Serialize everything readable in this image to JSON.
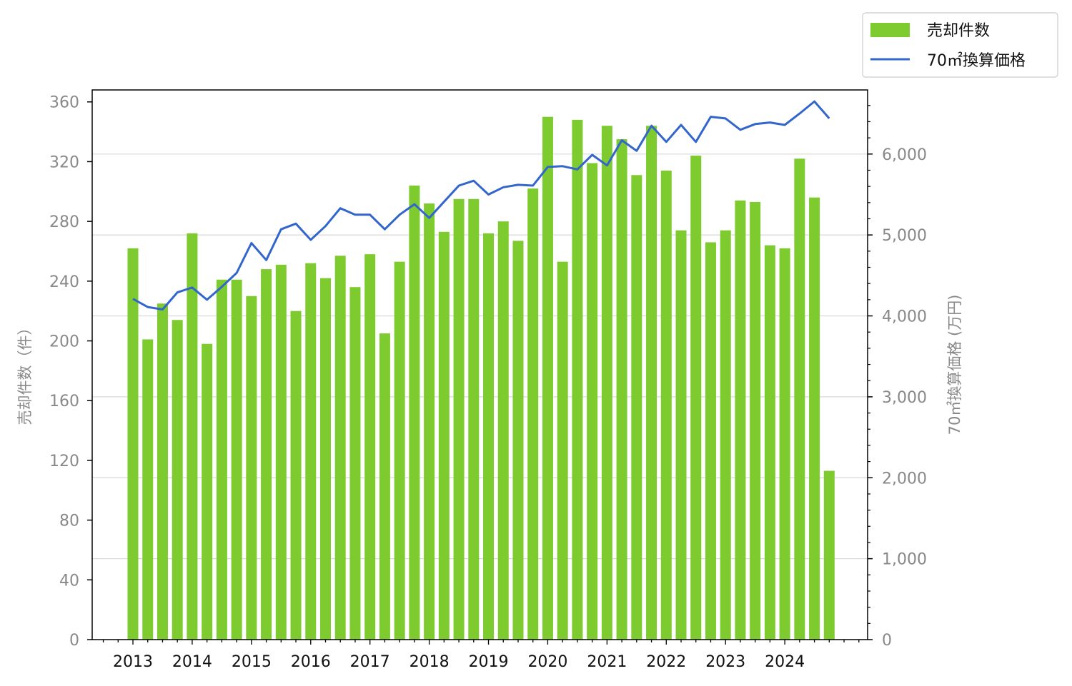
{
  "chart_data": {
    "type": "bar",
    "title": "",
    "xlabel": "",
    "ylabel": "売却件数（件）",
    "y2label": "70㎡換算価格 (万円)",
    "ylim": [
      0,
      368
    ],
    "y2lim": [
      0,
      6792
    ],
    "yticks": [
      "0",
      "40",
      "80",
      "120",
      "160",
      "200",
      "240",
      "280",
      "320",
      "360"
    ],
    "y2ticks": [
      "0",
      "1,000",
      "2,000",
      "3,000",
      "4,000",
      "5,000",
      "6,000"
    ],
    "x_year_labels": [
      "2013",
      "2014",
      "2015",
      "2016",
      "2017",
      "2018",
      "2019",
      "2020",
      "2021",
      "2022",
      "2023",
      "2024"
    ],
    "grid": "horizontal lines at right-axis ticks",
    "legend_position": "top-right, outside plot",
    "colors": {
      "bars": "#7ecb2f",
      "line": "#3366cc",
      "grid": "#d9d9d9",
      "axis": "#000000"
    },
    "categories": [
      "2013Q1",
      "2013Q2",
      "2013Q3",
      "2013Q4",
      "2014Q1",
      "2014Q2",
      "2014Q3",
      "2014Q4",
      "2015Q1",
      "2015Q2",
      "2015Q3",
      "2015Q4",
      "2016Q1",
      "2016Q2",
      "2016Q3",
      "2016Q4",
      "2017Q1",
      "2017Q2",
      "2017Q3",
      "2017Q4",
      "2018Q1",
      "2018Q2",
      "2018Q3",
      "2018Q4",
      "2019Q1",
      "2019Q2",
      "2019Q3",
      "2019Q4",
      "2020Q1",
      "2020Q2",
      "2020Q3",
      "2020Q4",
      "2021Q1",
      "2021Q2",
      "2021Q3",
      "2021Q4",
      "2022Q1",
      "2022Q2",
      "2022Q3",
      "2022Q4",
      "2023Q1",
      "2023Q2",
      "2023Q3",
      "2023Q4",
      "2024Q1",
      "2024Q2",
      "2024Q3",
      "2024Q4"
    ],
    "series": [
      {
        "name": "売却件数",
        "type": "bar",
        "axis": "left",
        "values": [
          262,
          201,
          225,
          214,
          272,
          198,
          241,
          241,
          230,
          248,
          251,
          220,
          252,
          242,
          257,
          236,
          258,
          205,
          253,
          304,
          292,
          273,
          295,
          295,
          272,
          280,
          267,
          302,
          350,
          253,
          348,
          319,
          344,
          335,
          311,
          344,
          314,
          274,
          324,
          266,
          274,
          294,
          293,
          264,
          262,
          322,
          296,
          113
        ]
      },
      {
        "name": "70㎡換算価格",
        "type": "line",
        "axis": "right",
        "values": [
          4210,
          4110,
          4080,
          4290,
          4350,
          4200,
          4360,
          4530,
          4900,
          4690,
          5070,
          5140,
          4940,
          5110,
          5330,
          5250,
          5250,
          5070,
          5250,
          5380,
          5210,
          5410,
          5610,
          5670,
          5500,
          5590,
          5620,
          5610,
          5840,
          5850,
          5810,
          5990,
          5860,
          6170,
          6040,
          6350,
          6150,
          6360,
          6150,
          6460,
          6440,
          6300,
          6370,
          6390,
          6360,
          6500,
          6650,
          6440
        ]
      }
    ]
  }
}
